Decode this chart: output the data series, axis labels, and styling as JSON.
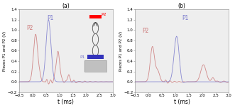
{
  "title_a": "(a)",
  "title_b": "(b)",
  "xlabel": "t (ms)",
  "ylabel": "Piezos P1 and P2 (V)",
  "xlim": [
    -0.5,
    3.0
  ],
  "ylim": [
    -0.2,
    1.4
  ],
  "yticks": [
    -0.2,
    0.0,
    0.2,
    0.4,
    0.6,
    0.8,
    1.0,
    1.2,
    1.4
  ],
  "xticks": [
    -0.5,
    0.0,
    0.5,
    1.0,
    1.5,
    2.0,
    2.5,
    3.0
  ],
  "color_p1": "#7777cc",
  "color_p2": "#cc7777",
  "bg_color": "#eeeeee",
  "font_size": 5.5,
  "title_fontsize": 5.5
}
